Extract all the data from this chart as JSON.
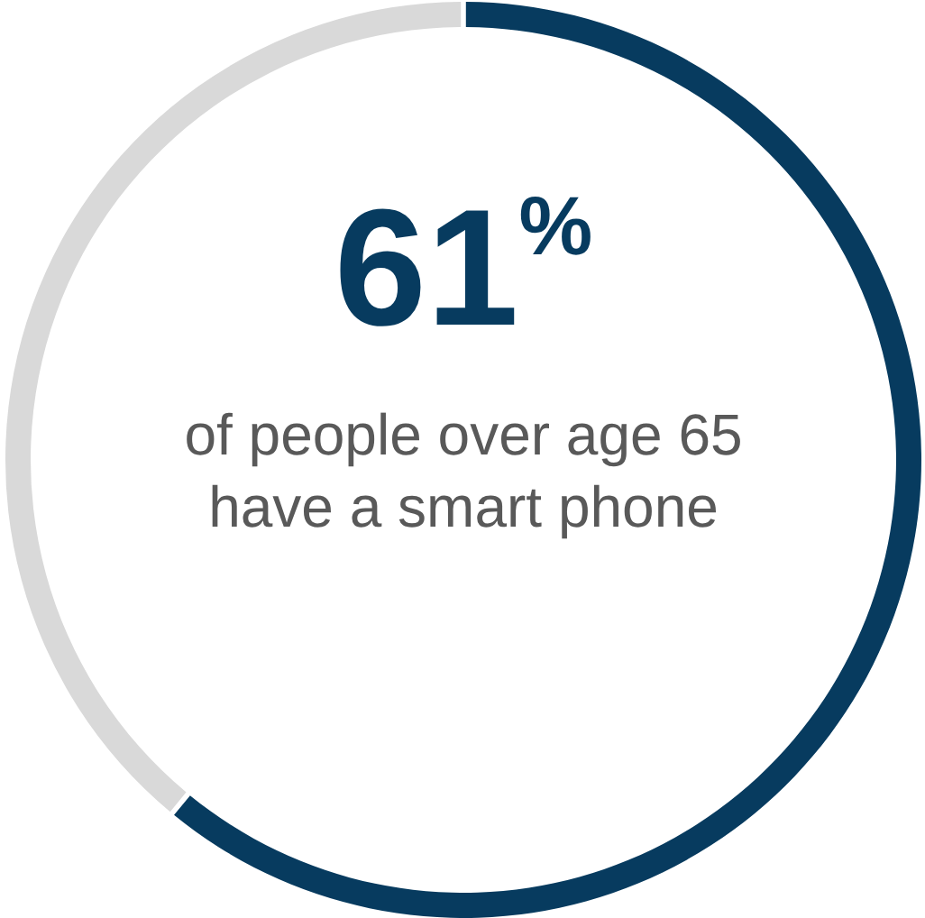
{
  "chart_data": {
    "type": "donut",
    "subtitle": "of people over age 65 have a smart phone",
    "categories": [
      null,
      null
    ],
    "values": [
      61,
      39
    ],
    "colors": [
      "#073b5f",
      "#d9d9d9"
    ],
    "value_labels": [
      "61$^{%}$",
      null
    ]
  }
}
